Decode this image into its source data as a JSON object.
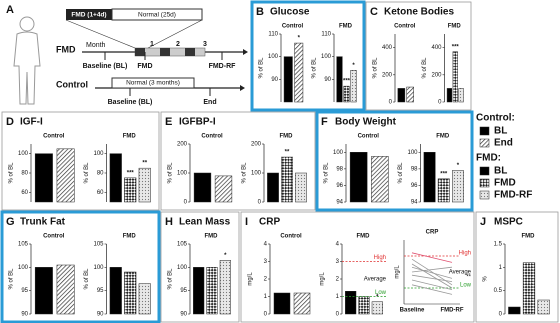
{
  "schematic": {
    "panel": "A",
    "fmd_box": "FMD (1+4d)",
    "normal_box": "Normal (25d)",
    "fmd_row": "FMD",
    "month": "Month",
    "months": [
      "1",
      "2",
      "3"
    ],
    "fmd_points": [
      "Baseline (BL)",
      "FMD",
      "FMD-RF"
    ],
    "control_row": "Control",
    "control_box": "Normal (3 months)",
    "control_points": [
      "Baseline (BL)",
      "End"
    ]
  },
  "legend": {
    "sections": [
      {
        "title": "Control:",
        "items": [
          "BL",
          "End"
        ]
      },
      {
        "title": "FMD:",
        "items": [
          "BL",
          "FMD",
          "FMD-RF"
        ]
      }
    ]
  },
  "chart_data": [
    {
      "type": "bar",
      "panel": "B",
      "title": "Glucose",
      "highlight": true,
      "groups": [
        {
          "name": "Control",
          "y_label": "% of BL",
          "ylim": [
            80,
            110
          ],
          "yticks": [
            90,
            100,
            110
          ],
          "values": [
            100,
            106
          ],
          "stars": [
            null,
            "*"
          ]
        },
        {
          "name": "FMD",
          "y_label": "% of BL",
          "ylim": [
            80,
            110
          ],
          "yticks": [
            90,
            100,
            110
          ],
          "values": [
            100,
            87,
            94
          ],
          "stars": [
            null,
            "***",
            "*"
          ]
        }
      ]
    },
    {
      "type": "bar",
      "panel": "C",
      "title": "Ketone Bodies",
      "highlight": false,
      "groups": [
        {
          "name": "Control",
          "y_label": "% of BL",
          "ylim": [
            0,
            500
          ],
          "yticks": [
            0,
            200,
            400
          ],
          "values": [
            100,
            110
          ],
          "stars": [
            null,
            null
          ]
        },
        {
          "name": "FMD",
          "y_label": "% of BL",
          "ylim": [
            0,
            500
          ],
          "yticks": [
            0,
            200,
            400
          ],
          "values": [
            100,
            370,
            100
          ],
          "stars": [
            null,
            "***",
            null
          ]
        }
      ]
    },
    {
      "type": "bar",
      "panel": "D",
      "title": "IGF-I",
      "highlight": false,
      "groups": [
        {
          "name": "Control",
          "y_label": "% of BL",
          "ylim": [
            50,
            110
          ],
          "yticks": [
            60,
            80,
            100
          ],
          "values": [
            100,
            105
          ],
          "stars": [
            null,
            null
          ]
        },
        {
          "name": "FMD",
          "y_label": "% of BL",
          "ylim": [
            50,
            110
          ],
          "yticks": [
            60,
            80,
            100
          ],
          "values": [
            100,
            75,
            85
          ],
          "stars": [
            null,
            "***",
            "**"
          ]
        }
      ]
    },
    {
      "type": "bar",
      "panel": "E",
      "title": "IGFBP-I",
      "highlight": false,
      "groups": [
        {
          "name": "Control",
          "y_label": "% of BL",
          "ylim": [
            0,
            200
          ],
          "yticks": [
            0,
            100,
            200
          ],
          "values": [
            100,
            90
          ],
          "stars": [
            null,
            null
          ]
        },
        {
          "name": "FMD",
          "y_label": "% of BL",
          "ylim": [
            0,
            200
          ],
          "yticks": [
            0,
            100,
            200
          ],
          "values": [
            100,
            155,
            100
          ],
          "stars": [
            null,
            "**",
            null
          ]
        }
      ]
    },
    {
      "type": "bar",
      "panel": "F",
      "title": "Body Weight",
      "highlight": true,
      "groups": [
        {
          "name": "Control",
          "y_label": "% of BL",
          "ylim": [
            94,
            101
          ],
          "yticks": [
            94,
            96,
            98,
            100
          ],
          "values": [
            100,
            99.5
          ],
          "stars": [
            null,
            null
          ]
        },
        {
          "name": "FMD",
          "y_label": "% of BL",
          "ylim": [
            94,
            101
          ],
          "yticks": [
            94,
            96,
            98,
            100
          ],
          "values": [
            100,
            96.8,
            97.8
          ],
          "stars": [
            null,
            "***",
            "*"
          ]
        }
      ]
    },
    {
      "type": "bar",
      "panel": "G",
      "title": "Trunk Fat",
      "highlight": true,
      "groups": [
        {
          "name": "Control",
          "y_label": "% of BL",
          "ylim": [
            90,
            105
          ],
          "yticks": [
            90,
            95,
            100,
            105
          ],
          "values": [
            100,
            100.5
          ],
          "stars": [
            null,
            null
          ]
        },
        {
          "name": "FMD",
          "y_label": "% of BL",
          "ylim": [
            90,
            105
          ],
          "yticks": [
            90,
            95,
            100,
            105
          ],
          "values": [
            100,
            99,
            96.5
          ],
          "stars": [
            null,
            null,
            null
          ]
        }
      ]
    },
    {
      "type": "bar",
      "panel": "H",
      "title": "Lean Mass",
      "highlight": false,
      "groups": [
        {
          "name": "FMD",
          "y_label": "% of BL",
          "ylim": [
            90,
            105
          ],
          "yticks": [
            90,
            95,
            100,
            105
          ],
          "values": [
            100,
            100,
            101.5
          ],
          "stars": [
            null,
            null,
            "*"
          ]
        }
      ]
    },
    {
      "type": "bar",
      "panel": "I",
      "title": "CRP",
      "highlight": false,
      "groups": [
        {
          "name": "Control",
          "y_label": "mg/L",
          "ylim": [
            0,
            4
          ],
          "yticks": [
            0,
            1,
            2,
            3,
            4
          ],
          "values": [
            1.2,
            1.2
          ],
          "stars": [
            null,
            null
          ]
        },
        {
          "name": "FMD",
          "y_label": "mg/L",
          "ylim": [
            0,
            4
          ],
          "yticks": [
            0,
            1,
            2,
            3,
            4
          ],
          "values": [
            1.3,
            1.0,
            0.7
          ],
          "stars": [
            null,
            null,
            "*"
          ],
          "ref_lines": [
            {
              "value": 3,
              "label": "High",
              "color": "#e03030"
            },
            {
              "value": 1,
              "label": "Low",
              "color": "#2a9d2a"
            }
          ],
          "annotations": [
            {
              "text": "Average",
              "value": 2
            }
          ]
        }
      ]
    },
    {
      "type": "line",
      "title": "CRP",
      "y_label": "mg/L",
      "categories": [
        "Baseline",
        "FMD-RF"
      ],
      "ylim": [
        0,
        4
      ],
      "ref_lines": [
        {
          "value": 3,
          "label": "High",
          "color": "#e03030"
        },
        {
          "value": 1,
          "label": "Low",
          "color": "#2a9d2a"
        }
      ],
      "annotations": [
        {
          "text": "Average",
          "value": 2
        },
        {
          "text": "**",
          "value": 1.7
        }
      ],
      "series": [
        {
          "color": "#999999",
          "values": [
            2.8,
            1.2
          ]
        },
        {
          "color": "#999999",
          "values": [
            2.5,
            1.0
          ]
        },
        {
          "color": "#999999",
          "values": [
            2.3,
            1.6
          ]
        },
        {
          "color": "#999999",
          "values": [
            2.0,
            2.3
          ]
        },
        {
          "color": "#999999",
          "values": [
            1.8,
            1.4
          ]
        },
        {
          "color": "#999999",
          "values": [
            1.5,
            0.9
          ]
        },
        {
          "color": "#999999",
          "values": [
            1.2,
            0.6
          ]
        },
        {
          "color": "#e05070",
          "values": [
            3.2,
            2.6
          ]
        }
      ]
    },
    {
      "type": "bar",
      "panel": "J",
      "title": "MSPC",
      "highlight": false,
      "groups": [
        {
          "name": "FMD",
          "y_label": "%",
          "ylim": [
            0,
            1.5
          ],
          "yticks": [
            0,
            0.5,
            1,
            1.5
          ],
          "values": [
            0.15,
            1.1,
            0.3
          ],
          "stars": [
            null,
            null,
            null
          ]
        }
      ]
    }
  ]
}
